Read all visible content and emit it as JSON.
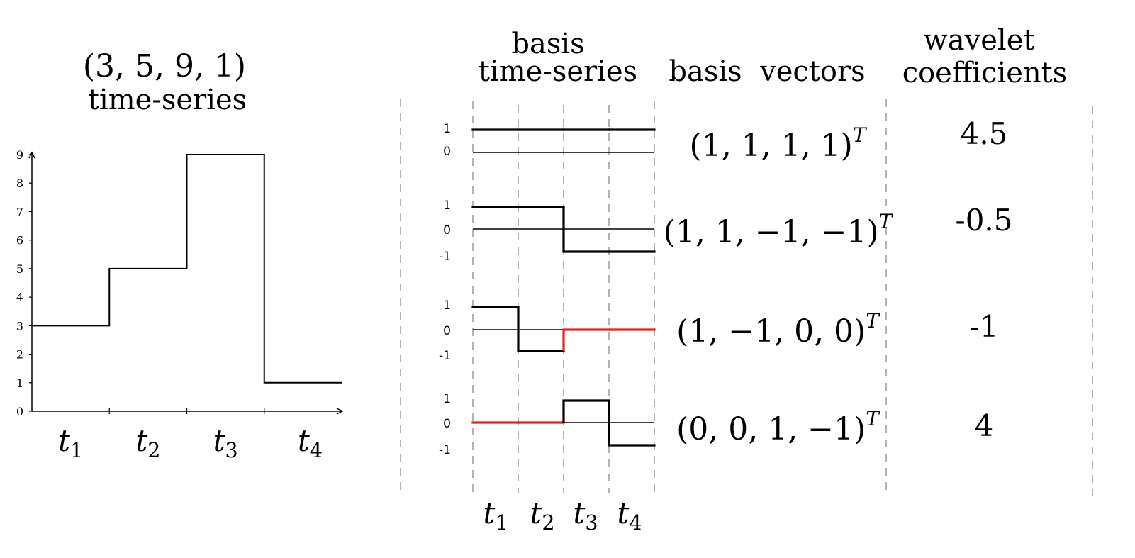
{
  "left_chart": {
    "title_line1": "(3, 5, 9, 1)",
    "title_line2": "time-series",
    "y_ticks": [
      "0",
      "1",
      "2",
      "3",
      "4",
      "5",
      "6",
      "7",
      "8",
      "9"
    ],
    "x_labels": [
      {
        "base": "t",
        "sub": "1"
      },
      {
        "base": "t",
        "sub": "2"
      },
      {
        "base": "t",
        "sub": "3"
      },
      {
        "base": "t",
        "sub": "4"
      }
    ]
  },
  "columns": {
    "basis_ts_line1": "basis",
    "basis_ts_line2": "time-series",
    "basis_vectors": "basis  vectors",
    "coef_line1": "wavelet",
    "coef_line2": "coefficients"
  },
  "rows": [
    {
      "vector": "(1, 1, 1, 1)",
      "sup": "T",
      "coef": "4.5",
      "y_ticks": [
        "1",
        "0"
      ]
    },
    {
      "vector": "(1, 1, −1, −1)",
      "sup": "T",
      "coef": "-0.5",
      "y_ticks": [
        "1",
        "0",
        "-1"
      ]
    },
    {
      "vector": "(1, −1, 0, 0)",
      "sup": "T",
      "coef": "-1",
      "y_ticks": [
        "1",
        "0",
        "-1"
      ]
    },
    {
      "vector": "(0, 0, 1, −1)",
      "sup": "T",
      "coef": "4",
      "y_ticks": [
        "1",
        "0",
        "-1"
      ]
    }
  ],
  "bottom_labels": [
    {
      "base": "t",
      "sub": "1"
    },
    {
      "base": "t",
      "sub": "2"
    },
    {
      "base": "t",
      "sub": "3"
    },
    {
      "base": "t",
      "sub": "4"
    }
  ],
  "chart_data": {
    "type": "line",
    "title": "(3, 5, 9, 1) time-series",
    "categories": [
      "t1",
      "t2",
      "t3",
      "t4"
    ],
    "values": [
      3,
      5,
      9,
      1
    ],
    "ylim": [
      0,
      9
    ],
    "step": true
  },
  "basis_series": [
    {
      "values": [
        1,
        1,
        1,
        1
      ]
    },
    {
      "values": [
        1,
        1,
        -1,
        -1
      ]
    },
    {
      "values": [
        1,
        -1,
        0,
        0
      ],
      "red_segments": [
        2,
        3
      ]
    },
    {
      "values": [
        0,
        0,
        1,
        -1
      ],
      "red_segments": [
        0,
        1
      ]
    }
  ],
  "colors": {
    "line": "#000000",
    "highlight": "#e8201e",
    "dash": "#8a8a8a"
  }
}
